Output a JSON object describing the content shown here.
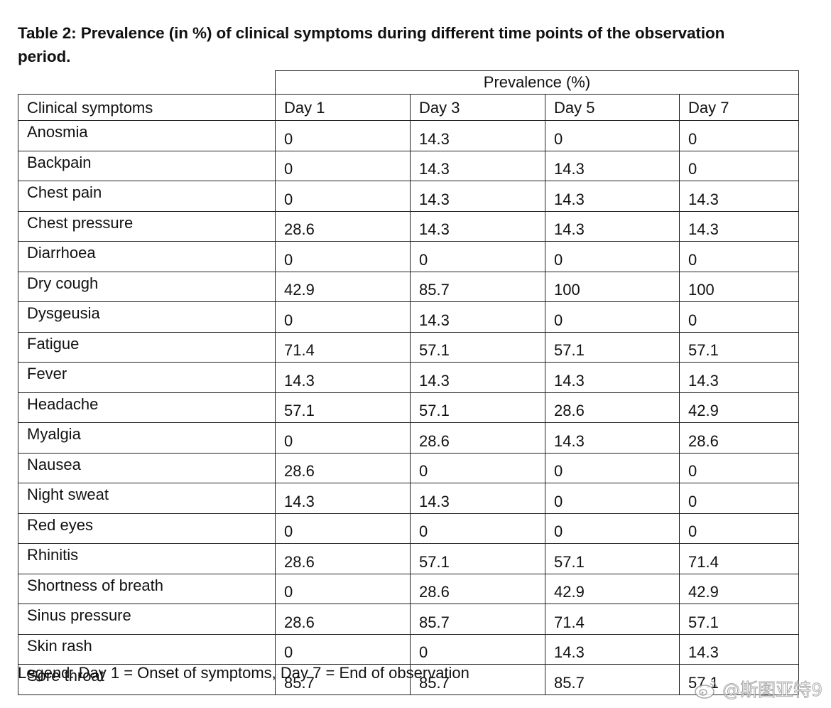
{
  "caption": {
    "line1": "Table 2: Prevalence (in %) of clinical symptoms during different time points of the observation",
    "line2": "period."
  },
  "table": {
    "group_header": "Prevalence (%)",
    "columns": [
      "Clinical symptoms",
      "Day 1",
      "Day 3",
      "Day 5",
      "Day 7"
    ],
    "rows": [
      [
        "Anosmia",
        "0",
        "14.3",
        "0",
        "0"
      ],
      [
        "Backpain",
        "0",
        "14.3",
        "14.3",
        "0"
      ],
      [
        "Chest pain",
        "0",
        "14.3",
        "14.3",
        "14.3"
      ],
      [
        "Chest pressure",
        "28.6",
        "14.3",
        "14.3",
        "14.3"
      ],
      [
        "Diarrhoea",
        "0",
        "0",
        "0",
        "0"
      ],
      [
        "Dry cough",
        "42.9",
        "85.7",
        "100",
        "100"
      ],
      [
        "Dysgeusia",
        "0",
        "14.3",
        "0",
        "0"
      ],
      [
        "Fatigue",
        "71.4",
        "57.1",
        "57.1",
        "57.1"
      ],
      [
        "Fever",
        "14.3",
        "14.3",
        "14.3",
        "14.3"
      ],
      [
        "Headache",
        "57.1",
        "57.1",
        "28.6",
        "42.9"
      ],
      [
        "Myalgia",
        "0",
        "28.6",
        "14.3",
        "28.6"
      ],
      [
        "Nausea",
        "28.6",
        "0",
        "0",
        "0"
      ],
      [
        "Night sweat",
        "14.3",
        "14.3",
        "0",
        "0"
      ],
      [
        "Red eyes",
        "0",
        "0",
        "0",
        "0"
      ],
      [
        "Rhinitis",
        "28.6",
        "57.1",
        "57.1",
        "71.4"
      ],
      [
        "Shortness of breath",
        "0",
        "28.6",
        "42.9",
        "42.9"
      ],
      [
        "Sinus pressure",
        "28.6",
        "85.7",
        "71.4",
        "57.1"
      ],
      [
        "Skin rash",
        "0",
        "0",
        "14.3",
        "14.3"
      ],
      [
        "Sore throat",
        "85.7",
        "85.7",
        "85.7",
        "57.1"
      ]
    ]
  },
  "legend": "Legend: Day 1 = Onset of symptoms, Day 7 = End of observation",
  "watermark": {
    "text": "@斯图亚特9",
    "icon": "weibo-logo-icon"
  }
}
